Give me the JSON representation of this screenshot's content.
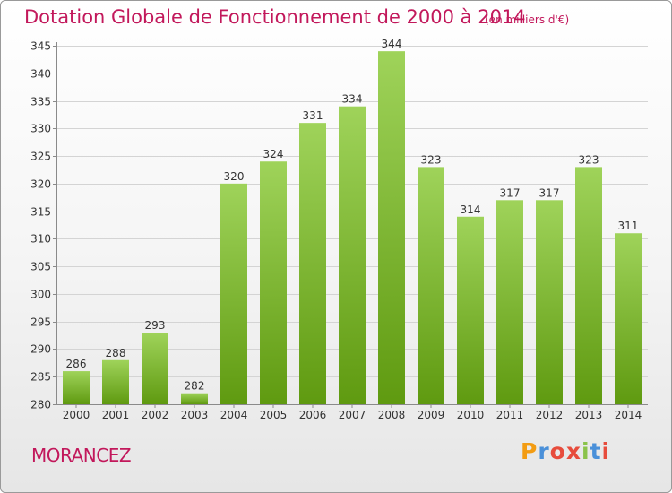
{
  "header": {
    "title": "Dotation Globale de Fonctionnement de 2000 à 2014",
    "subtitle": "(en milliers d'€)"
  },
  "footer": {
    "place": "MORANCEZ",
    "logo_letters": [
      "P",
      "r",
      "o",
      "x",
      "i",
      "t",
      "i"
    ],
    "logo_colors": [
      "#f39c12",
      "#4a90d9",
      "#e74c3c",
      "#e74c3c",
      "#8bc34a",
      "#4a90d9",
      "#e74c3c"
    ]
  },
  "colors": {
    "bar_top": "#9fd35a",
    "bar_bottom": "#5f9a10",
    "grid": "#d4d4d4",
    "axis": "#8a8a8a",
    "text": "#333333",
    "accent": "#c2185b"
  },
  "chart_data": {
    "type": "bar",
    "title": "Dotation Globale de Fonctionnement de 2000 à 2014",
    "subtitle": "(en milliers d'€)",
    "categories": [
      "2000",
      "2001",
      "2002",
      "2003",
      "2004",
      "2005",
      "2006",
      "2007",
      "2008",
      "2009",
      "2010",
      "2011",
      "2012",
      "2013",
      "2014"
    ],
    "values": [
      286,
      288,
      293,
      282,
      320,
      324,
      331,
      334,
      344,
      323,
      314,
      317,
      317,
      323,
      311
    ],
    "ylim": [
      280,
      345
    ],
    "yticks": [
      280,
      285,
      290,
      295,
      300,
      305,
      310,
      315,
      320,
      325,
      330,
      335,
      340,
      345
    ],
    "grid": true,
    "legend": "none"
  }
}
